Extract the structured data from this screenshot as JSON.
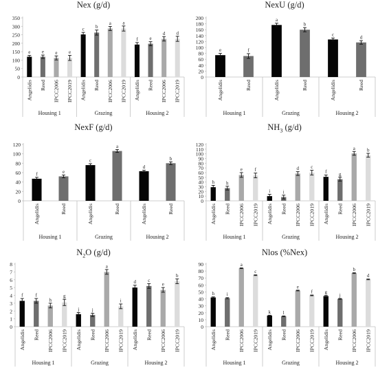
{
  "chart_data": [
    {
      "id": "nex",
      "type": "bar",
      "title": "Nex (g/d)",
      "ylim": [
        0,
        350
      ],
      "ytick_step": 50,
      "groups": [
        {
          "label": "Housing 1",
          "bars": [
            {
              "cat": "Angelidis",
              "value": 120,
              "err": 8,
              "letter": "e",
              "shade": "black"
            },
            {
              "cat": "Reed",
              "value": 120,
              "err": 10,
              "letter": "e",
              "shade": "dark"
            },
            {
              "cat": "IPCC2006",
              "value": 113,
              "err": 12,
              "letter": "e",
              "shade": "light"
            },
            {
              "cat": "IPCC2019",
              "value": 113,
              "err": 15,
              "letter": "e",
              "shade": "lighter"
            }
          ]
        },
        {
          "label": "Grazing",
          "bars": [
            {
              "cat": "Angelidis",
              "value": 252,
              "err": 12,
              "letter": "c",
              "shade": "black"
            },
            {
              "cat": "Reed",
              "value": 263,
              "err": 15,
              "letter": "b",
              "shade": "dark"
            },
            {
              "cat": "IPCC2006",
              "value": 287,
              "err": 12,
              "letter": "a",
              "shade": "light"
            },
            {
              "cat": "IPCC2019",
              "value": 287,
              "err": 15,
              "letter": "a",
              "shade": "lighter"
            }
          ]
        },
        {
          "label": "Housing 2",
          "bars": [
            {
              "cat": "Angelidis",
              "value": 192,
              "err": 12,
              "letter": "f",
              "shade": "black"
            },
            {
              "cat": "Reed",
              "value": 197,
              "err": 12,
              "letter": "e",
              "shade": "dark"
            },
            {
              "cat": "IPCC2006",
              "value": 226,
              "err": 13,
              "letter": "d",
              "shade": "light"
            },
            {
              "cat": "IPCC2019",
              "value": 226,
              "err": 15,
              "letter": "d",
              "shade": "lighter"
            }
          ]
        }
      ]
    },
    {
      "id": "nexu",
      "type": "bar",
      "title": "NexU (g/d)",
      "ylim": [
        0,
        200
      ],
      "ytick_step": 20,
      "groups": [
        {
          "label": "Housing 1",
          "bars": [
            {
              "cat": "Angelidis",
              "value": 74,
              "err": 6,
              "letter": "e",
              "shade": "black"
            },
            {
              "cat": "Reed",
              "value": 71,
              "err": 8,
              "letter": "f",
              "shade": "dark"
            }
          ]
        },
        {
          "label": "Grazing",
          "bars": [
            {
              "cat": "Angelidis",
              "value": 176,
              "err": 6,
              "letter": "a",
              "shade": "black"
            },
            {
              "cat": "Reed",
              "value": 160,
              "err": 7,
              "letter": "b",
              "shade": "dark"
            }
          ]
        },
        {
          "label": "Housing 2",
          "bars": [
            {
              "cat": "Angelidis",
              "value": 127,
              "err": 5,
              "letter": "c",
              "shade": "black"
            },
            {
              "cat": "Reed",
              "value": 117,
              "err": 6,
              "letter": "d",
              "shade": "dark"
            }
          ]
        }
      ]
    },
    {
      "id": "nexf",
      "type": "bar",
      "title": "NexF (g/d)",
      "ylim": [
        0,
        120
      ],
      "ytick_step": 20,
      "groups": [
        {
          "label": "Housing 1",
          "bars": [
            {
              "cat": "Angelidis",
              "value": 47,
              "err": 3,
              "letter": "f",
              "shade": "black"
            },
            {
              "cat": "Reed",
              "value": 52,
              "err": 3,
              "letter": "e",
              "shade": "dark"
            }
          ]
        },
        {
          "label": "Grazing",
          "bars": [
            {
              "cat": "Angelidis",
              "value": 76,
              "err": 3,
              "letter": "c",
              "shade": "black"
            },
            {
              "cat": "Reed",
              "value": 106,
              "err": 3,
              "letter": "a",
              "shade": "dark"
            }
          ]
        },
        {
          "label": "Housing 2",
          "bars": [
            {
              "cat": "Angelidis",
              "value": 63,
              "err": 2,
              "letter": "d",
              "shade": "black"
            },
            {
              "cat": "Reed",
              "value": 80,
              "err": 3,
              "letter": "b",
              "shade": "dark"
            }
          ]
        }
      ]
    },
    {
      "id": "nh3",
      "type": "bar",
      "title_main": "NH",
      "title_sub": "3",
      "title_tail": " (g/d)",
      "ylim": [
        0,
        120
      ],
      "ytick_step": 10,
      "groups": [
        {
          "label": "Housing 1",
          "bars": [
            {
              "cat": "Angelidis",
              "value": 29,
              "err": 4,
              "letter": "h",
              "shade": "black"
            },
            {
              "cat": "Reed",
              "value": 27,
              "err": 4,
              "letter": "h",
              "shade": "dark"
            },
            {
              "cat": "IPCC2006",
              "value": 55,
              "err": 5,
              "letter": "e",
              "shade": "light"
            },
            {
              "cat": "IPCC2019",
              "value": 54,
              "err": 5,
              "letter": "f",
              "shade": "lighter"
            }
          ]
        },
        {
          "label": "Grazing",
          "bars": [
            {
              "cat": "Angelidis",
              "value": 10,
              "err": 4,
              "letter": "i",
              "shade": "black"
            },
            {
              "cat": "Reed",
              "value": 8,
              "err": 4,
              "letter": "i",
              "shade": "dark"
            },
            {
              "cat": "IPCC2006",
              "value": 58,
              "err": 4,
              "letter": "d",
              "shade": "light"
            },
            {
              "cat": "IPCC2019",
              "value": 60,
              "err": 5,
              "letter": "c",
              "shade": "lighter"
            }
          ]
        },
        {
          "label": "Housing 2",
          "bars": [
            {
              "cat": "Angelidis",
              "value": 51,
              "err": 4,
              "letter": "f",
              "shade": "black"
            },
            {
              "cat": "Reed",
              "value": 46,
              "err": 4,
              "letter": "g",
              "shade": "dark"
            },
            {
              "cat": "IPCC2006",
              "value": 101,
              "err": 4,
              "letter": "a",
              "shade": "light"
            },
            {
              "cat": "IPCC2019",
              "value": 97,
              "err": 4,
              "letter": "b",
              "shade": "lighter"
            }
          ]
        }
      ]
    },
    {
      "id": "n2o",
      "type": "bar",
      "title_main": "N",
      "title_sub": "2",
      "title_tail": "O (g/d)",
      "ylim": [
        0,
        8
      ],
      "ytick_step": 1,
      "groups": [
        {
          "label": "Housing 1",
          "bars": [
            {
              "cat": "Angelidis",
              "value": 3.3,
              "err": 0.3,
              "letter": "f",
              "shade": "black"
            },
            {
              "cat": "Reed",
              "value": 3.3,
              "err": 0.3,
              "letter": "f",
              "shade": "dark"
            },
            {
              "cat": "IPCC2006",
              "value": 2.7,
              "err": 0.3,
              "letter": "h",
              "shade": "light"
            },
            {
              "cat": "IPCC2019",
              "value": 3.1,
              "err": 0.4,
              "letter": "g",
              "shade": "lighter"
            }
          ]
        },
        {
          "label": "Grazing",
          "bars": [
            {
              "cat": "Angelidis",
              "value": 1.6,
              "err": 0.2,
              "letter": "j",
              "shade": "black"
            },
            {
              "cat": "Reed",
              "value": 1.5,
              "err": 0.2,
              "letter": "j",
              "shade": "dark"
            },
            {
              "cat": "IPCC2006",
              "value": 7.0,
              "err": 0.3,
              "letter": "a",
              "shade": "light"
            },
            {
              "cat": "IPCC2019",
              "value": 2.6,
              "err": 0.3,
              "letter": "i",
              "shade": "lighter"
            }
          ]
        },
        {
          "label": "Housing 2",
          "bars": [
            {
              "cat": "Angelidis",
              "value": 5.0,
              "err": 0.3,
              "letter": "d",
              "shade": "black"
            },
            {
              "cat": "Reed",
              "value": 5.2,
              "err": 0.3,
              "letter": "c",
              "shade": "dark"
            },
            {
              "cat": "IPCC2006",
              "value": 4.7,
              "err": 0.3,
              "letter": "e",
              "shade": "light"
            },
            {
              "cat": "IPCC2019",
              "value": 5.8,
              "err": 0.3,
              "letter": "b",
              "shade": "lighter"
            }
          ]
        }
      ]
    },
    {
      "id": "nlos",
      "type": "bar",
      "title": "Nlos (%Nex)",
      "ylim": [
        0,
        90
      ],
      "ytick_step": 10,
      "groups": [
        {
          "label": "Housing 1",
          "bars": [
            {
              "cat": "Angelidis",
              "value": 42,
              "err": 0.8,
              "letter": "h",
              "shade": "black"
            },
            {
              "cat": "Reed",
              "value": 41,
              "err": 0.8,
              "letter": "i",
              "shade": "dark"
            },
            {
              "cat": "IPCC2006",
              "value": 84,
              "err": 0.5,
              "letter": "a",
              "shade": "light"
            },
            {
              "cat": "IPCC2019",
              "value": 74,
              "err": 0.5,
              "letter": "c",
              "shade": "lighter"
            }
          ]
        },
        {
          "label": "Grazing",
          "bars": [
            {
              "cat": "Angelidis",
              "value": 16,
              "err": 0.5,
              "letter": "k",
              "shade": "black"
            },
            {
              "cat": "Reed",
              "value": 15,
              "err": 0.5,
              "letter": "l",
              "shade": "dark"
            },
            {
              "cat": "IPCC2006",
              "value": 52,
              "err": 0.5,
              "letter": "e",
              "shade": "light"
            },
            {
              "cat": "IPCC2019",
              "value": 45,
              "err": 0.5,
              "letter": "f",
              "shade": "lighter"
            }
          ]
        },
        {
          "label": "Housing 2",
          "bars": [
            {
              "cat": "Angelidis",
              "value": 44,
              "err": 0.8,
              "letter": "g",
              "shade": "black"
            },
            {
              "cat": "Reed",
              "value": 40,
              "err": 0.5,
              "letter": "j",
              "shade": "dark"
            },
            {
              "cat": "IPCC2006",
              "value": 77,
              "err": 0.5,
              "letter": "b",
              "shade": "light"
            },
            {
              "cat": "IPCC2019",
              "value": 68,
              "err": 0.5,
              "letter": "d",
              "shade": "lighter"
            }
          ]
        }
      ]
    }
  ],
  "colors": {
    "black": "#050505",
    "dark": "#6e6e6e",
    "light": "#a9a9a9",
    "lighter": "#dcdcdc",
    "axis": "#bfbfbf",
    "text": "#222222"
  }
}
